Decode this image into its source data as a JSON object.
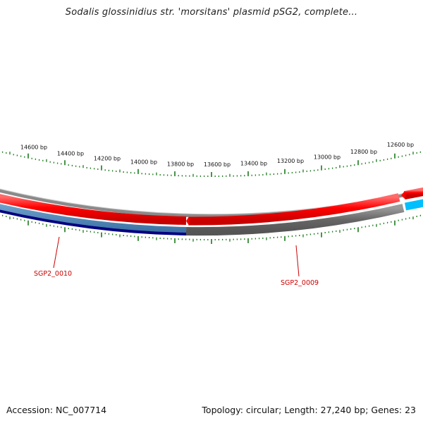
{
  "title": "Sodalis glossinidius str. 'morsitans' plasmid pSG2, complete...",
  "footer": {
    "accession": "Accession: NC_007714",
    "summary": "Topology: circular; Length: 27,240 bp; Genes: 23"
  },
  "scale": {
    "ticks": [
      "14600 bp",
      "14400 bp",
      "14200 bp",
      "14000 bp",
      "13800 bp",
      "13600 bp",
      "13400 bp",
      "13200 bp",
      "13000 bp",
      "12800 bp",
      "12600 bp"
    ]
  },
  "genes": [
    {
      "label": "SGP2_0010",
      "color": "#cc0000"
    },
    {
      "label": "SGP2_0009",
      "color": "#cc0000"
    }
  ],
  "colors": {
    "tick": "#1a7a1a",
    "plus_strand": "#ff0000",
    "backbone": "#888888",
    "minus_dark": "#000080",
    "minus_steel": "#4682b4",
    "minus_grey": "#666666",
    "minus_cyan": "#00bfff"
  }
}
